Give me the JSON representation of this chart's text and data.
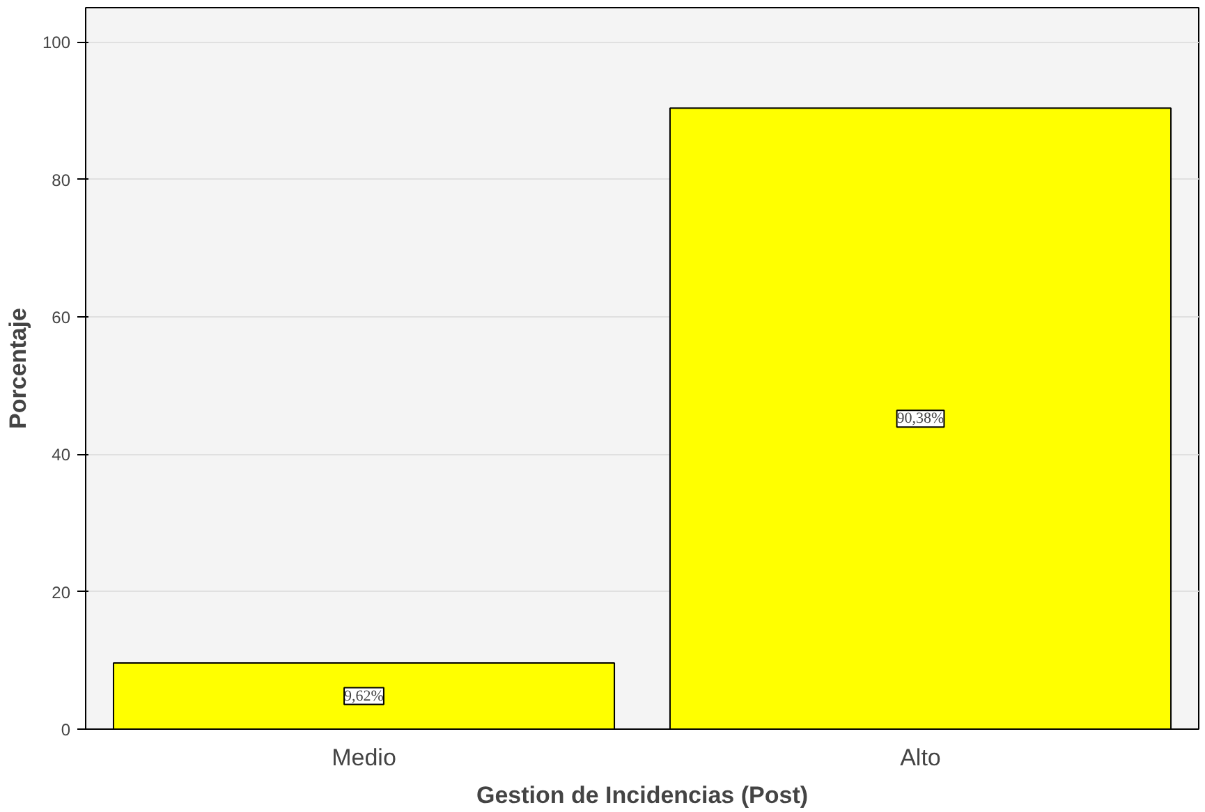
{
  "chart_data": {
    "type": "bar",
    "xlabel": "Gestion de Incidencias (Post)",
    "ylabel": "Porcentaje",
    "categories": [
      "Medio",
      "Alto"
    ],
    "values": [
      9.62,
      90.38
    ],
    "value_labels": [
      "9,62%",
      "90,38%"
    ],
    "color": "#ffff00",
    "ylim": [
      0,
      105
    ],
    "yticks": [
      0,
      20,
      40,
      60,
      80,
      100
    ],
    "grid": "y"
  }
}
